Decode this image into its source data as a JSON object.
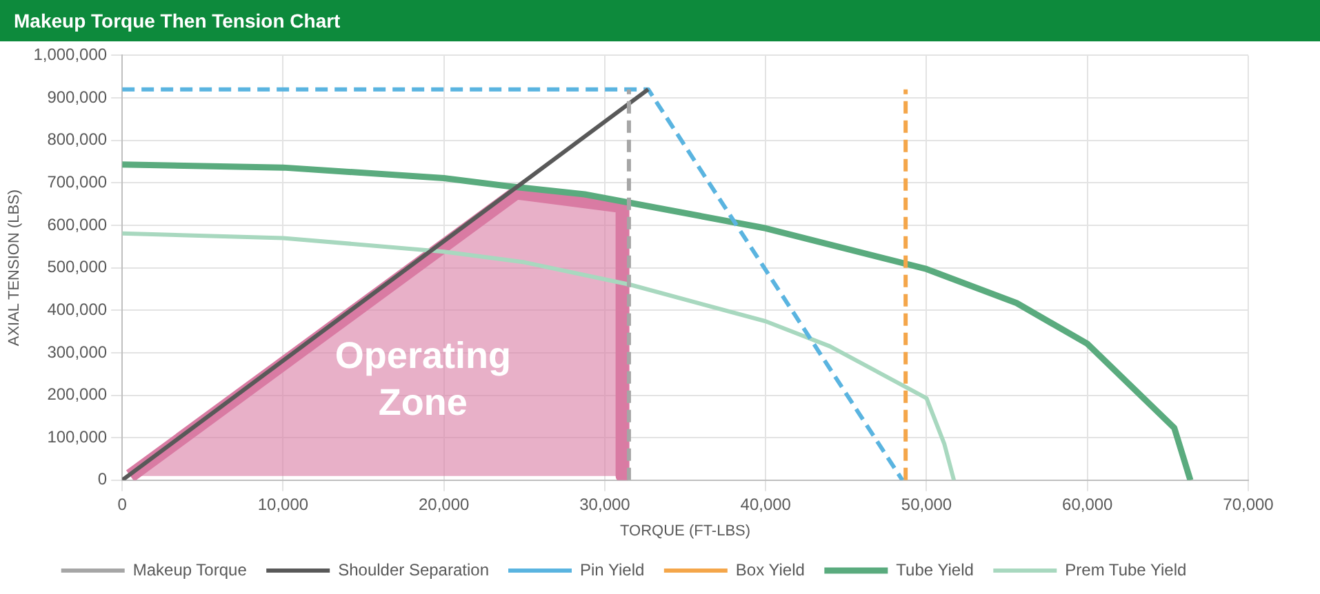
{
  "chart_data": {
    "type": "line",
    "title": "Makeup Torque Then Tension Chart",
    "xlabel": "TORQUE (FT-LBS)",
    "ylabel": "AXIAL TENSION (LBS)",
    "xlim": [
      0,
      70000
    ],
    "xticks": [
      0,
      {
        "value": 10000,
        "label": "10,000"
      },
      {
        "value": 20000,
        "label": "20,000"
      },
      {
        "value": 30000,
        "label": "30,000"
      },
      {
        "value": 40000,
        "label": "40,000"
      },
      {
        "value": 50000,
        "label": "50,000"
      },
      {
        "value": 60000,
        "label": "60,000"
      },
      {
        "value": 70000,
        "label": "70,000"
      }
    ],
    "ylim": [
      0,
      1000000
    ],
    "yticks": [
      0,
      {
        "value": 100000,
        "label": "100,000"
      },
      {
        "value": 200000,
        "label": "200,000"
      },
      {
        "value": 300000,
        "label": "300,000"
      },
      {
        "value": 400000,
        "label": "400,000"
      },
      {
        "value": 500000,
        "label": "500,000"
      },
      {
        "value": 600000,
        "label": "600,000"
      },
      {
        "value": 700000,
        "label": "700,000"
      },
      {
        "value": 800000,
        "label": "800,000"
      },
      {
        "value": 900000,
        "label": "900,000"
      },
      {
        "value": 1000000,
        "label": "1,000,000"
      }
    ],
    "grid": true,
    "legend": "bottom",
    "marker": "none",
    "annotations": [
      "Operating Zone"
    ],
    "series": [
      {
        "type": "area",
        "color": "#d97ba3",
        "x": [
          500,
          24500,
          31100,
          31100
        ],
        "values": [
          10000,
          677000,
          645000,
          10000
        ]
      },
      {
        "name": "Makeup Torque",
        "color": "#a6a6a6",
        "line_style": "dashed",
        "x": [
          31500,
          31500
        ],
        "values": [
          0,
          920000
        ]
      },
      {
        "name": "Shoulder Separation",
        "color": "#595959",
        "line_style": "solid",
        "x": [
          0,
          32700
        ],
        "values": [
          0,
          920000
        ]
      },
      {
        "name": "Pin Yield",
        "color": "#5ab4e0",
        "line_style": "dashed",
        "x": [
          0,
          32700,
          48500
        ],
        "values": [
          920000,
          920000,
          0
        ]
      },
      {
        "name": "Box Yield",
        "color": "#f4a64a",
        "line_style": "dashed",
        "x": [
          48700,
          48700
        ],
        "values": [
          0,
          920000
        ]
      },
      {
        "name": "Tube Yield",
        "color": "#5aab7e",
        "line_style": "solid",
        "x": [
          0,
          10000,
          20000,
          24000,
          28750,
          40000,
          50000,
          55600,
          60000,
          65400,
          66400
        ],
        "values": [
          743000,
          736000,
          711000,
          692000,
          673000,
          593000,
          497000,
          417000,
          321000,
          123000,
          0
        ]
      },
      {
        "name": "Prem Tube Yield",
        "color": "#a8d8bf",
        "line_style": "solid",
        "x": [
          0,
          10000,
          20000,
          25000,
          31600,
          40000,
          44000,
          50000,
          51100,
          51700
        ],
        "values": [
          581000,
          570000,
          538000,
          513000,
          460000,
          374000,
          315000,
          193000,
          86000,
          0
        ]
      }
    ]
  }
}
